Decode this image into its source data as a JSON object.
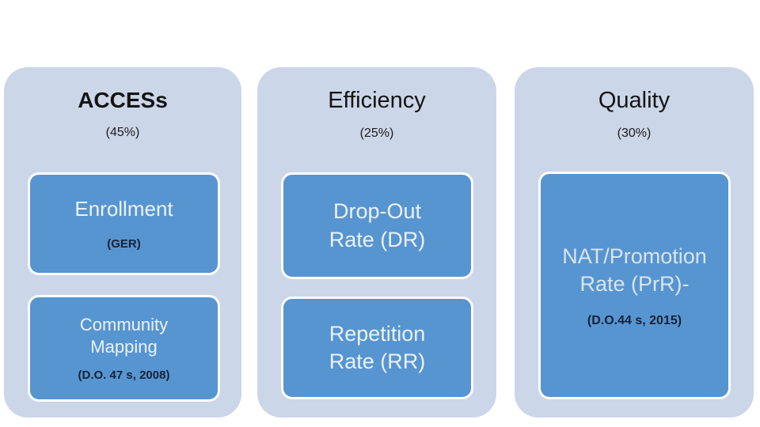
{
  "slide": {
    "background_color": "#ffffff",
    "panel_color": "#ccd6e9",
    "box_color": "#5795d0",
    "box_border_color": "#fdfdfd",
    "heading_color": "#141414",
    "box_title_color": "#ecf2fa",
    "box_caption_color": "#152238"
  },
  "columns": [
    {
      "heading": "ACCESs",
      "weight": "(45%)",
      "boxes": [
        {
          "title": "Enrollment",
          "caption": "(GER)"
        },
        {
          "title": "Community Mapping",
          "caption": "(D.O. 47 s, 2008)"
        }
      ]
    },
    {
      "heading": "Efficiency",
      "weight": "(25%)",
      "boxes": [
        {
          "title": "Drop-Out Rate (DR)",
          "caption": ""
        },
        {
          "title": "Repetition Rate (RR)",
          "caption": ""
        }
      ]
    },
    {
      "heading": "Quality",
      "weight": "(30%)",
      "boxes": [
        {
          "title": "NAT/Promotion Rate (PrR)-",
          "caption": "(D.O.44 s, 2015)"
        }
      ]
    }
  ]
}
